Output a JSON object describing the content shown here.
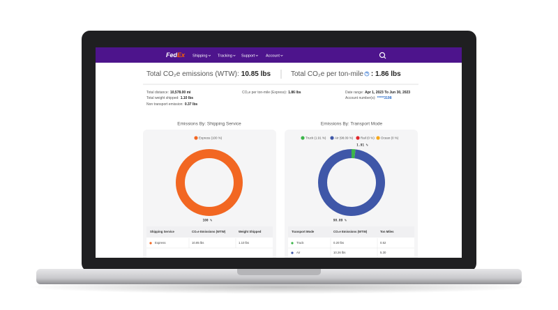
{
  "nav": {
    "logo_fed": "Fed",
    "logo_ex": "Ex",
    "menu": [
      "Shipping",
      "Tracking",
      "Support",
      "Account"
    ]
  },
  "summary": {
    "total_label": "Total CO₂e emissions (WTW):",
    "total_value": "10.85 lbs",
    "per_ton_mile_label": "Total CO₂e per ton-mile",
    "per_ton_mile_value": ": 1.86 lbs"
  },
  "details": [
    {
      "label": "Total distance:",
      "value": "10,578.00 mi"
    },
    {
      "label": "Total weight shipped:",
      "value": "1.10 lbs"
    },
    {
      "label": "Non transport emission:",
      "value": "0.37 lbs"
    },
    {
      "label": "CO₂e per ton-mile (Express):",
      "value": "1.86 lbs"
    },
    {
      "label": "Date range:",
      "value": "Apr 1, 2023 To Jun 30, 2023"
    },
    {
      "label": "Account number(s):",
      "value": "*****3198"
    }
  ],
  "chart_data": [
    {
      "type": "pie",
      "title": "Emissions By: Shipping Service",
      "categories": [
        "Express"
      ],
      "legend_labels": [
        "Express (100 %)"
      ],
      "values": [
        100
      ],
      "value_labels": [
        "100 %"
      ],
      "colors": [
        "#f26722"
      ]
    },
    {
      "type": "pie",
      "title": "Emissions By: Transport Mode",
      "categories": [
        "Truck",
        "Air",
        "Rail",
        "Ocean"
      ],
      "legend_labels": [
        "Truck (1.91 %)",
        "Air (98.09 %)",
        "Rail (0 %)",
        "Ocean (0 %)"
      ],
      "values": [
        1.91,
        98.09,
        0,
        0
      ],
      "value_labels": [
        "1.91 %",
        "98.09 %",
        null,
        null
      ],
      "colors": [
        "#3cb54a",
        "#3f57a8",
        "#e0262b",
        "#f7a81b"
      ]
    }
  ],
  "tables": [
    {
      "headers": [
        "Shipping Service",
        "CO₂e Emissions (WTW)",
        "Weight Shipped"
      ],
      "rows": [
        [
          "Express",
          "10.85 lbs",
          "1.10 lbs"
        ]
      ]
    },
    {
      "headers": [
        "Transport Mode",
        "CO₂e Emissions (WTW)",
        "Ton Miles"
      ],
      "rows": [
        [
          "Truck",
          "0.20 lbs",
          "0.52"
        ],
        [
          "Air",
          "10.26 lbs",
          "5.30"
        ]
      ]
    }
  ]
}
